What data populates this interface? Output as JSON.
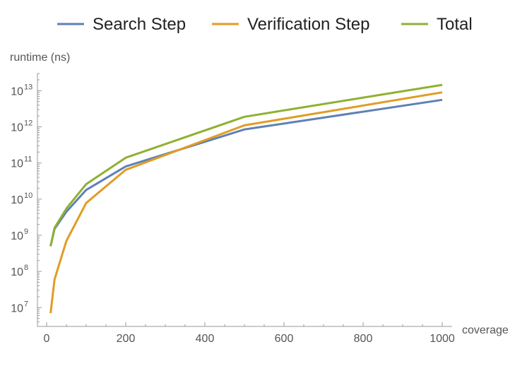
{
  "chart_data": {
    "type": "line",
    "ylabel": "runtime (ns)",
    "xlabel": "coverage",
    "y_scale": "log",
    "xlim": [
      0,
      1000
    ],
    "ylim": [
      3000000.0,
      30000000000000.0
    ],
    "x_ticks": [
      {
        "value": 0,
        "label": "0"
      },
      {
        "value": 200,
        "label": "200"
      },
      {
        "value": 400,
        "label": "400"
      },
      {
        "value": 600,
        "label": "600"
      },
      {
        "value": 800,
        "label": "800"
      },
      {
        "value": 1000,
        "label": "1000"
      }
    ],
    "y_ticks": [
      {
        "value": 10000000.0,
        "base": "10",
        "exp": "7"
      },
      {
        "value": 100000000.0,
        "base": "10",
        "exp": "8"
      },
      {
        "value": 1000000000.0,
        "base": "10",
        "exp": "9"
      },
      {
        "value": 10000000000.0,
        "base": "10",
        "exp": "10"
      },
      {
        "value": 100000000000.0,
        "base": "10",
        "exp": "11"
      },
      {
        "value": 1000000000000.0,
        "base": "10",
        "exp": "12"
      },
      {
        "value": 10000000000000.0,
        "base": "10",
        "exp": "13"
      }
    ],
    "legend_position": "top",
    "series": [
      {
        "name": "Search Step",
        "color": "#5E81B5",
        "x": [
          10,
          20,
          50,
          100,
          200,
          500,
          1000
        ],
        "y": [
          500000000.0,
          1500000000.0,
          4500000000.0,
          18000000000.0,
          80000000000.0,
          850000000000.0,
          5600000000000.0
        ]
      },
      {
        "name": "Verification Step",
        "color": "#E19C24",
        "x": [
          10,
          20,
          50,
          100,
          200,
          500,
          1000
        ],
        "y": [
          7000000.0,
          60000000.0,
          700000000.0,
          7800000000.0,
          65000000000.0,
          1100000000000.0,
          9000000000000.0
        ]
      },
      {
        "name": "Total",
        "color": "#8FB032",
        "x": [
          10,
          20,
          50,
          100,
          200,
          500,
          1000
        ],
        "y": [
          500000000.0,
          1600000000.0,
          5500000000.0,
          26000000000.0,
          140000000000.0,
          1900000000000.0,
          14500000000000.0
        ]
      }
    ]
  }
}
